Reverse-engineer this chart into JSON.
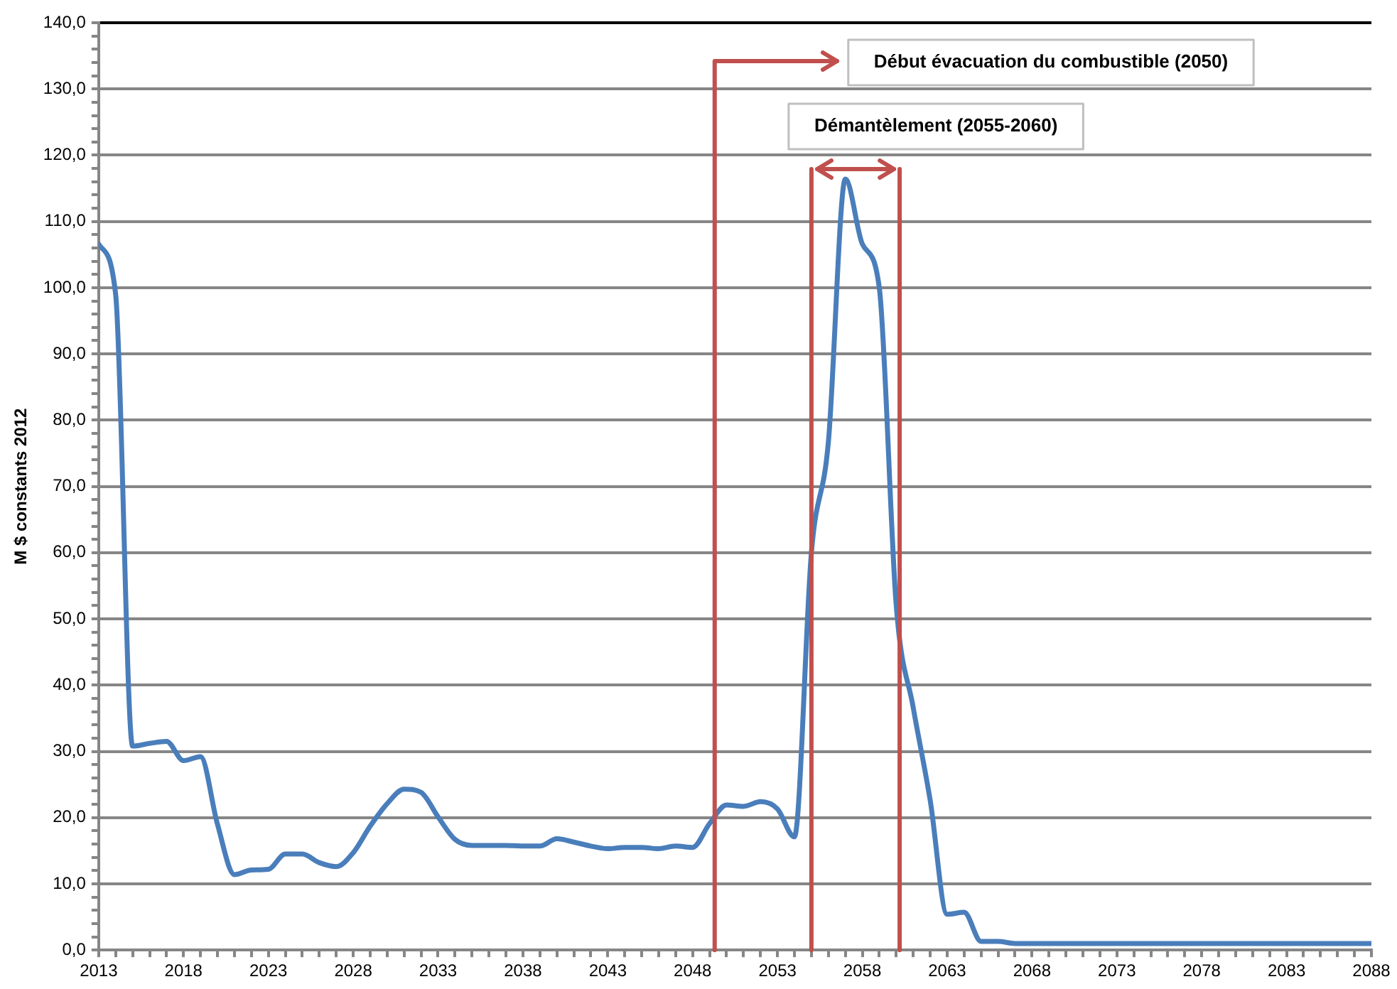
{
  "chart_data": {
    "type": "line",
    "ylabel": "M $ constants 2012",
    "x": [
      2013,
      2014,
      2015,
      2016,
      2017,
      2018,
      2019,
      2020,
      2021,
      2022,
      2023,
      2024,
      2025,
      2026,
      2027,
      2028,
      2029,
      2030,
      2031,
      2032,
      2033,
      2034,
      2035,
      2036,
      2037,
      2038,
      2039,
      2040,
      2041,
      2042,
      2043,
      2044,
      2045,
      2046,
      2047,
      2048,
      2049,
      2050,
      2051,
      2052,
      2053,
      2054,
      2055,
      2056,
      2057,
      2058,
      2059,
      2060,
      2061,
      2062,
      2063,
      2064,
      2065,
      2066,
      2067,
      2068,
      2069,
      2070,
      2071,
      2072,
      2073,
      2074,
      2075,
      2076,
      2077,
      2078,
      2079,
      2080,
      2081,
      2082,
      2083,
      2084,
      2085,
      2086,
      2087,
      2088
    ],
    "series": [
      {
        "color": "#4a7ebb",
        "values": [
          106.6,
          99,
          30.8,
          31.2,
          31.5,
          28.6,
          29.2,
          19,
          11.4,
          12.1,
          12.2,
          14.5,
          14.5,
          13.2,
          12.6,
          14.7,
          18.7,
          22.1,
          24.3,
          23.8,
          20.1,
          16.7,
          15.8,
          15.8,
          15.8,
          15.7,
          15.7,
          16.8,
          16.3,
          15.7,
          15.3,
          15.5,
          15.5,
          15.3,
          15.7,
          15.5,
          19.1,
          21.9,
          21.7,
          22.4,
          21.3,
          17.1,
          60,
          76.7,
          116.4,
          106.6,
          100,
          52,
          36.6,
          22.6,
          5.4,
          5.7,
          1.3,
          1.3,
          1,
          1,
          1,
          1,
          1,
          1,
          1,
          1,
          1,
          1,
          1,
          1,
          1,
          1,
          1,
          1,
          1,
          1,
          1,
          1,
          1,
          1
        ]
      }
    ],
    "xlim": [
      2013,
      2088
    ],
    "xticks": [
      2013,
      {
        "value": 2014,
        "label": null
      },
      {
        "value": 2015,
        "label": null
      },
      {
        "value": 2016,
        "label": null
      },
      {
        "value": 2017,
        "label": null
      },
      2018,
      {
        "value": 2019,
        "label": null
      },
      {
        "value": 2020,
        "label": null
      },
      {
        "value": 2021,
        "label": null
      },
      {
        "value": 2022,
        "label": null
      },
      2023,
      {
        "value": 2024,
        "label": null
      },
      {
        "value": 2025,
        "label": null
      },
      {
        "value": 2026,
        "label": null
      },
      {
        "value": 2027,
        "label": null
      },
      2028,
      {
        "value": 2029,
        "label": null
      },
      {
        "value": 2030,
        "label": null
      },
      {
        "value": 2031,
        "label": null
      },
      {
        "value": 2032,
        "label": null
      },
      2033,
      {
        "value": 2034,
        "label": null
      },
      {
        "value": 2035,
        "label": null
      },
      {
        "value": 2036,
        "label": null
      },
      {
        "value": 2037,
        "label": null
      },
      2038,
      {
        "value": 2039,
        "label": null
      },
      {
        "value": 2040,
        "label": null
      },
      {
        "value": 2041,
        "label": null
      },
      {
        "value": 2042,
        "label": null
      },
      2043,
      {
        "value": 2044,
        "label": null
      },
      {
        "value": 2045,
        "label": null
      },
      {
        "value": 2046,
        "label": null
      },
      {
        "value": 2047,
        "label": null
      },
      2048,
      {
        "value": 2049,
        "label": null
      },
      {
        "value": 2050,
        "label": null
      },
      {
        "value": 2051,
        "label": null
      },
      {
        "value": 2052,
        "label": null
      },
      2053,
      {
        "value": 2054,
        "label": null
      },
      {
        "value": 2055,
        "label": null
      },
      {
        "value": 2056,
        "label": null
      },
      {
        "value": 2057,
        "label": null
      },
      2058,
      {
        "value": 2059,
        "label": null
      },
      {
        "value": 2060,
        "label": null
      },
      {
        "value": 2061,
        "label": null
      },
      {
        "value": 2062,
        "label": null
      },
      2063,
      {
        "value": 2064,
        "label": null
      },
      {
        "value": 2065,
        "label": null
      },
      {
        "value": 2066,
        "label": null
      },
      {
        "value": 2067,
        "label": null
      },
      2068,
      {
        "value": 2069,
        "label": null
      },
      {
        "value": 2070,
        "label": null
      },
      {
        "value": 2071,
        "label": null
      },
      {
        "value": 2072,
        "label": null
      },
      2073,
      {
        "value": 2074,
        "label": null
      },
      {
        "value": 2075,
        "label": null
      },
      {
        "value": 2076,
        "label": null
      },
      {
        "value": 2077,
        "label": null
      },
      2078,
      {
        "value": 2079,
        "label": null
      },
      {
        "value": 2080,
        "label": null
      },
      {
        "value": 2081,
        "label": null
      },
      {
        "value": 2082,
        "label": null
      },
      2083,
      {
        "value": 2084,
        "label": null
      },
      {
        "value": 2085,
        "label": null
      },
      {
        "value": 2086,
        "label": null
      },
      {
        "value": 2087,
        "label": null
      },
      2088
    ],
    "ylim": [
      0,
      140
    ],
    "yticks": [
      {
        "value": 0,
        "label": "0,0"
      },
      {
        "value": 2,
        "label": null
      },
      {
        "value": 4,
        "label": null
      },
      {
        "value": 6,
        "label": null
      },
      {
        "value": 8,
        "label": null
      },
      {
        "value": 10,
        "label": "10,0"
      },
      {
        "value": 12,
        "label": null
      },
      {
        "value": 14,
        "label": null
      },
      {
        "value": 16,
        "label": null
      },
      {
        "value": 18,
        "label": null
      },
      {
        "value": 20,
        "label": "20,0"
      },
      {
        "value": 22,
        "label": null
      },
      {
        "value": 24,
        "label": null
      },
      {
        "value": 26,
        "label": null
      },
      {
        "value": 28,
        "label": null
      },
      {
        "value": 30,
        "label": "30,0"
      },
      {
        "value": 32,
        "label": null
      },
      {
        "value": 34,
        "label": null
      },
      {
        "value": 36,
        "label": null
      },
      {
        "value": 38,
        "label": null
      },
      {
        "value": 40,
        "label": "40,0"
      },
      {
        "value": 42,
        "label": null
      },
      {
        "value": 44,
        "label": null
      },
      {
        "value": 46,
        "label": null
      },
      {
        "value": 48,
        "label": null
      },
      {
        "value": 50,
        "label": "50,0"
      },
      {
        "value": 52,
        "label": null
      },
      {
        "value": 54,
        "label": null
      },
      {
        "value": 56,
        "label": null
      },
      {
        "value": 58,
        "label": null
      },
      {
        "value": 60,
        "label": "60,0"
      },
      {
        "value": 62,
        "label": null
      },
      {
        "value": 64,
        "label": null
      },
      {
        "value": 66,
        "label": null
      },
      {
        "value": 68,
        "label": null
      },
      {
        "value": 70,
        "label": "70,0"
      },
      {
        "value": 72,
        "label": null
      },
      {
        "value": 74,
        "label": null
      },
      {
        "value": 76,
        "label": null
      },
      {
        "value": 78,
        "label": null
      },
      {
        "value": 80,
        "label": "80,0"
      },
      {
        "value": 82,
        "label": null
      },
      {
        "value": 84,
        "label": null
      },
      {
        "value": 86,
        "label": null
      },
      {
        "value": 88,
        "label": null
      },
      {
        "value": 90,
        "label": "90,0"
      },
      {
        "value": 92,
        "label": null
      },
      {
        "value": 94,
        "label": null
      },
      {
        "value": 96,
        "label": null
      },
      {
        "value": 98,
        "label": null
      },
      {
        "value": 100,
        "label": "100,0"
      },
      {
        "value": 102,
        "label": null
      },
      {
        "value": 104,
        "label": null
      },
      {
        "value": 106,
        "label": null
      },
      {
        "value": 108,
        "label": null
      },
      {
        "value": 110,
        "label": "110,0"
      },
      {
        "value": 112,
        "label": null
      },
      {
        "value": 114,
        "label": null
      },
      {
        "value": 116,
        "label": null
      },
      {
        "value": 118,
        "label": null
      },
      {
        "value": 120,
        "label": "120,0"
      },
      {
        "value": 122,
        "label": null
      },
      {
        "value": 124,
        "label": null
      },
      {
        "value": 126,
        "label": null
      },
      {
        "value": 128,
        "label": null
      },
      {
        "value": 130,
        "label": "130,0"
      },
      {
        "value": 132,
        "label": null
      },
      {
        "value": 134,
        "label": null
      },
      {
        "value": 136,
        "label": null
      },
      {
        "value": 138,
        "label": null
      },
      {
        "value": 140,
        "label": "140,0"
      }
    ],
    "grid": "y",
    "legend": false,
    "marker": "none",
    "line_style": "solid",
    "ref_lines": [
      {
        "axis": "x",
        "value": 2049.3,
        "label": "Début évacuation du combustible (2050)",
        "color": "#c0504d"
      },
      {
        "axis": "x",
        "value": 2055,
        "label": "Démantèlement (2055-2060)",
        "color": "#c0504d"
      },
      {
        "axis": "x",
        "value": 2060.2,
        "color": "#c0504d"
      }
    ]
  }
}
